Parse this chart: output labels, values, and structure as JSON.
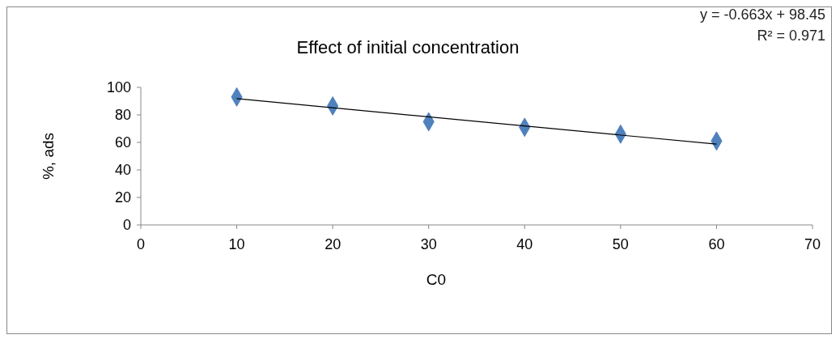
{
  "chart_data": {
    "type": "scatter",
    "title": "Effect of initial concentration",
    "xlabel": "C0",
    "ylabel": "%, ads",
    "x": [
      10,
      20,
      30,
      40,
      50,
      60
    ],
    "series": [
      {
        "color": "#4f81bd",
        "values": [
          93,
          86.5,
          75,
          71,
          66,
          61
        ],
        "marker": "diamond"
      },
      {
        "type": "line",
        "color": "#000000",
        "x": [
          10,
          60
        ],
        "values": [
          91.8,
          58.7
        ]
      }
    ],
    "xlim": [
      0,
      70
    ],
    "xticks": [
      0,
      10,
      20,
      30,
      40,
      50,
      60,
      70
    ],
    "ylim": [
      0,
      100
    ],
    "yticks": [
      0,
      20,
      40,
      60,
      80,
      100
    ],
    "annotations": [
      "y = -0.663x + 98.45",
      "R² = 0.971"
    ]
  }
}
